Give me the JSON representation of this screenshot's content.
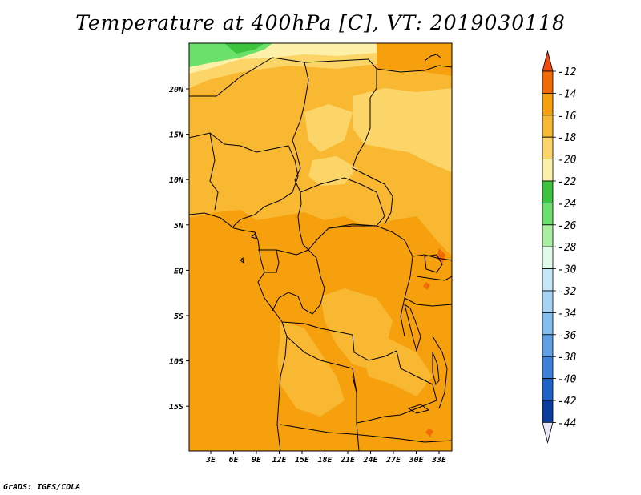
{
  "title": "Temperature at 400hPa [C], VT: 2019030118",
  "credit": "GrADS: IGES/COLA",
  "map": {
    "lat_labels": [
      "20N",
      "15N",
      "10N",
      "5N",
      "EQ",
      "5S",
      "10S",
      "15S"
    ],
    "lon_labels": [
      "3E",
      "6E",
      "9E",
      "12E",
      "15E",
      "18E",
      "21E",
      "24E",
      "27E",
      "30E",
      "33E"
    ]
  },
  "colorbar": {
    "levels": [
      "-12",
      "-14",
      "-16",
      "-18",
      "-20",
      "-22",
      "-24",
      "-26",
      "-28",
      "-30",
      "-32",
      "-34",
      "-36",
      "-38",
      "-40",
      "-42",
      "-44"
    ],
    "colors": [
      "#f26a05",
      "#f5a00c",
      "#f8b832",
      "#fcd568",
      "#fdf0a8",
      "#3cc43c",
      "#6ae16a",
      "#a8f0a0",
      "#e0fce8",
      "#c6e6fa",
      "#a6d3f5",
      "#82bdf0",
      "#5ea0e6",
      "#3c82dc",
      "#1e64c8",
      "#0a3ca0",
      "#1a1470"
    ],
    "top_color": "#f04a10",
    "bottom_color": "#e8e6f8"
  }
}
